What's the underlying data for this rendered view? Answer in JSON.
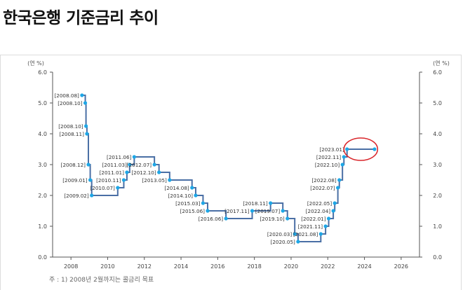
{
  "page": {
    "title": "한국은행 기준금리 추이"
  },
  "chart_data": {
    "type": "line",
    "style": "step",
    "left_unit": "(연 %)",
    "right_unit": "(연 %)",
    "xlabel": "",
    "ylabel": "",
    "xlim": [
      2007,
      2027
    ],
    "ylim": [
      0,
      6
    ],
    "y_ticks": [
      "0.0",
      "1.0",
      "2.0",
      "3.0",
      "4.0",
      "5.0",
      "6.0"
    ],
    "x_ticks": [
      "2008",
      "2010",
      "2012",
      "2014",
      "2016",
      "2018",
      "2020",
      "2022",
      "2024",
      "2026"
    ],
    "grid": false,
    "series_color": "#4a6fa5",
    "point_color": "#1ea7e6",
    "highlight_color": "#d9252a",
    "series": [
      {
        "points": [
          {
            "label": "[2008.08]",
            "x": 2008.6,
            "y": 5.25
          },
          {
            "label": "[2008.10]",
            "x": 2008.78,
            "y": 5.0
          },
          {
            "label": "[2008.10]",
            "x": 2008.82,
            "y": 4.25
          },
          {
            "label": "[2008.11]",
            "x": 2008.87,
            "y": 4.0
          },
          {
            "label": "[2008.12]",
            "x": 2008.95,
            "y": 3.0
          },
          {
            "label": "[2009.01]",
            "x": 2009.05,
            "y": 2.5
          },
          {
            "label": "[2009.02]",
            "x": 2009.13,
            "y": 2.0
          },
          {
            "label": "[2010.07]",
            "x": 2010.55,
            "y": 2.25
          },
          {
            "label": "[2010.11]",
            "x": 2010.88,
            "y": 2.5
          },
          {
            "label": "[2011.01]",
            "x": 2011.05,
            "y": 2.75
          },
          {
            "label": "[2011.03]",
            "x": 2011.2,
            "y": 3.0
          },
          {
            "label": "[2011.06]",
            "x": 2011.45,
            "y": 3.25
          },
          {
            "label": "[2012.07]",
            "x": 2012.55,
            "y": 3.0
          },
          {
            "label": "[2012.10]",
            "x": 2012.8,
            "y": 2.75
          },
          {
            "label": "[2013.05]",
            "x": 2013.38,
            "y": 2.5
          },
          {
            "label": "[2014.08]",
            "x": 2014.6,
            "y": 2.25
          },
          {
            "label": "[2014.10]",
            "x": 2014.8,
            "y": 2.0
          },
          {
            "label": "[2015.03]",
            "x": 2015.2,
            "y": 1.75
          },
          {
            "label": "[2015.06]",
            "x": 2015.45,
            "y": 1.5
          },
          {
            "label": "[2016.06]",
            "x": 2016.45,
            "y": 1.25
          },
          {
            "label": "[2017.11]",
            "x": 2017.88,
            "y": 1.5
          },
          {
            "label": "[2018.11]",
            "x": 2018.88,
            "y": 1.75
          },
          {
            "label": "[2019.07]",
            "x": 2019.55,
            "y": 1.5
          },
          {
            "label": "[2019.10]",
            "x": 2019.8,
            "y": 1.25
          },
          {
            "label": "[2020.03]",
            "x": 2020.2,
            "y": 0.75
          },
          {
            "label": "[2020.05]",
            "x": 2020.38,
            "y": 0.5
          },
          {
            "label": "[2021.08]",
            "x": 2021.62,
            "y": 0.75
          },
          {
            "label": "[2021.11]",
            "x": 2021.88,
            "y": 1.0
          },
          {
            "label": "[2022.01]",
            "x": 2022.05,
            "y": 1.25
          },
          {
            "label": "[2022.04]",
            "x": 2022.3,
            "y": 1.5
          },
          {
            "label": "[2022.05]",
            "x": 2022.38,
            "y": 1.75
          },
          {
            "label": "[2022.07]",
            "x": 2022.55,
            "y": 2.25
          },
          {
            "label": "[2022.08]",
            "x": 2022.63,
            "y": 2.5
          },
          {
            "label": "[2022.10]",
            "x": 2022.8,
            "y": 3.0
          },
          {
            "label": "[2022.11]",
            "x": 2022.88,
            "y": 3.25
          },
          {
            "label": "[2023.01]",
            "x": 2023.05,
            "y": 3.5
          },
          {
            "label": "",
            "x": 2024.55,
            "y": 3.5
          }
        ]
      }
    ],
    "highlight": {
      "x": 2023.8,
      "y": 3.5
    }
  },
  "footnote": "주 : 1) 2008년 2월까지는 콜금리 목표"
}
